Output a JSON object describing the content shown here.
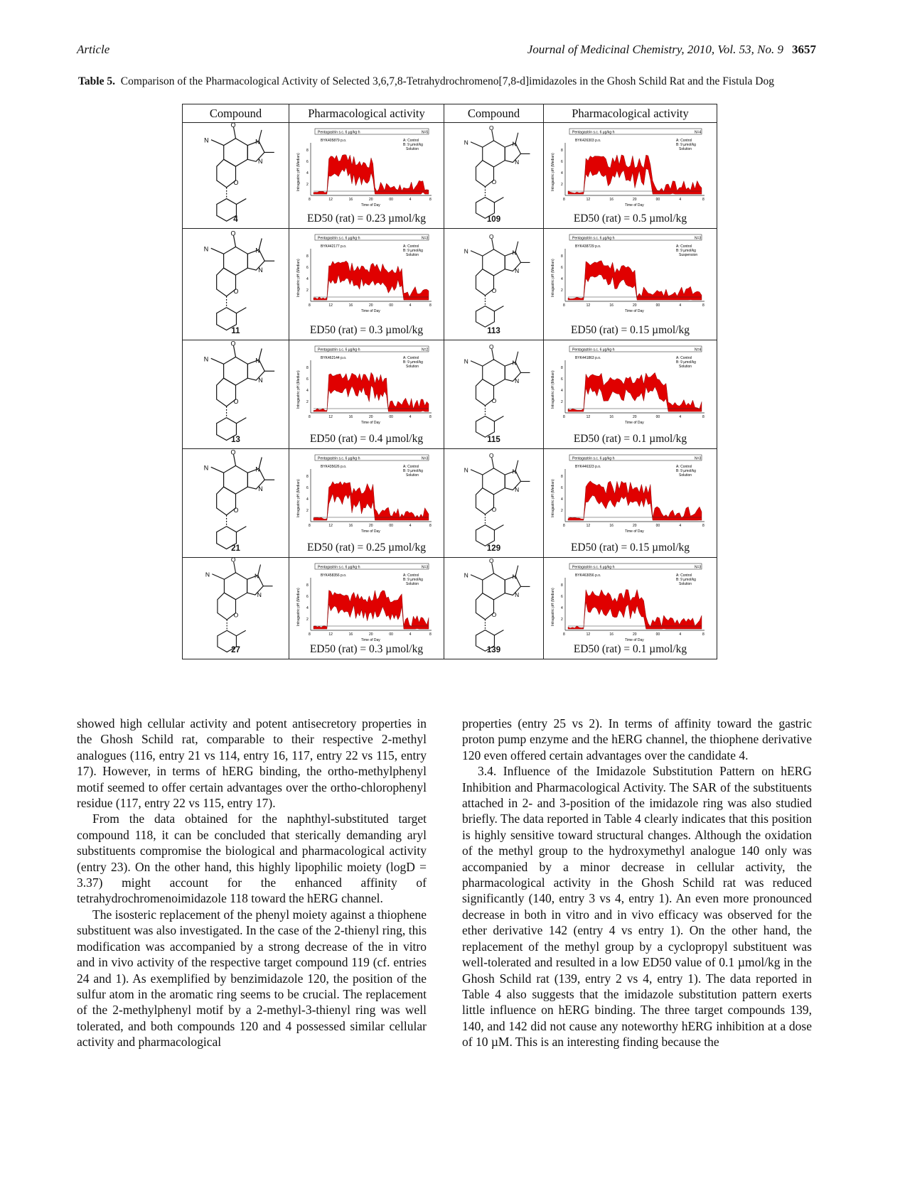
{
  "header": {
    "left": "Article",
    "right": "Journal of Medicinal Chemistry, 2010, Vol. 53, No. 9",
    "page": "3657"
  },
  "caption": {
    "label": "Table 5.",
    "text": "Comparison of the Pharmacological Activity of Selected 3,6,7,8-Tetrahydrochromeno[7,8-d]imidazoles in the Ghosh Schild Rat and the Fistula Dog"
  },
  "table": {
    "headers": [
      "Compound",
      "Pharmacological activity",
      "Compound",
      "Pharmacological activity"
    ],
    "rows": [
      [
        {
          "id": "4",
          "byk": "BYK405879 p.o.",
          "n": "N=5",
          "cond": "B: 9 µmol/kg",
          "form": "Solution",
          "ed50": "ED50 (rat) = 0.23 µmol/kg"
        },
        {
          "id": "109",
          "byk": "BYK426303 p.o.",
          "n": "N=4",
          "cond": "B: 9 µmol/kg",
          "form": "Solution",
          "ed50": "ED50 (rat) = 0.5 µmol/kg"
        }
      ],
      [
        {
          "id": "11",
          "byk": "BYK442177 p.o.",
          "n": "N=3",
          "cond": "B: 9 µmol/kg",
          "form": "Solution",
          "ed50": "ED50 (rat) = 0.3 µmol/kg"
        },
        {
          "id": "113",
          "byk": "BYK438729 p.o.",
          "n": "N=3",
          "cond": "B: 9 µmol/kg",
          "form": "Suspension",
          "ed50": "ED50 (rat) = 0.15 µmol/kg"
        }
      ],
      [
        {
          "id": "13",
          "byk": "BYK462144 p.o.",
          "n": "N=2",
          "cond": "B: 9 µmol/kg",
          "form": "Solution",
          "ed50": "ED50 (rat) = 0.4 µmol/kg"
        },
        {
          "id": "115",
          "byk": "BYK441863 p.o.",
          "n": "N=4",
          "cond": "B: 9 µmol/kg",
          "form": "Solution",
          "ed50": "ED50 (rat) = 0.1 µmol/kg"
        }
      ],
      [
        {
          "id": "21",
          "byk": "BYK435626 p.o.",
          "n": "N=3",
          "cond": "B: 9 µmol/kg",
          "form": "Solution",
          "ed50": "ED50 (rat) = 0.25 µmol/kg"
        },
        {
          "id": "129",
          "byk": "BYK446323 p.o.",
          "n": "N=3",
          "cond": "B: 9 µmol/kg",
          "form": "Solution",
          "ed50": "ED50 (rat) = 0.15 µmol/kg"
        }
      ],
      [
        {
          "id": "27",
          "byk": "BYK458356 p.o.",
          "n": "N=3",
          "cond": "B: 9 µmol/kg",
          "form": "Solution",
          "ed50": "ED50 (rat) = 0.3 µmol/kg"
        },
        {
          "id": "139",
          "byk": "BYK463056 p.o.",
          "n": "N=3",
          "cond": "B: 9 µmol/kg",
          "form": "Solution",
          "ed50": "ED50 (rat) = 0.1 µmol/kg"
        }
      ]
    ],
    "plot_common": {
      "top_label": "Pentagastrin s.c. 6 µg/kg·h",
      "ctrl": "A: Control",
      "ylabel": "Intragastric pH (Median)",
      "xlabel": "Time of Day",
      "xticks": [
        "8",
        "12",
        "16",
        "20",
        "00",
        "4",
        "8"
      ],
      "yticks": [
        "2",
        "4",
        "6",
        "8"
      ]
    }
  },
  "left_col": [
    "showed high cellular activity and potent antisecretory properties in the Ghosh Schild rat, comparable to their respective 2-methyl analogues (116, entry 21 vs 114, entry 16, 117, entry 22 vs 115, entry 17). However, in terms of hERG binding, the ortho-methylphenyl motif seemed to offer certain advantages over the ortho-chlorophenyl residue (117, entry 22 vs 115, entry 17).",
    "From the data obtained for the naphthyl-substituted target compound 118, it can be concluded that sterically demanding aryl substituents compromise the biological and pharmacological activity (entry 23). On the other hand, this highly lipophilic moiety (logD = 3.37) might account for the enhanced affinity of tetrahydrochromenoimidazole 118 toward the hERG channel.",
    "The isosteric replacement of the phenyl moiety against a thiophene substituent was also investigated. In the case of the 2-thienyl ring, this modification was accompanied by a strong decrease of the in vitro and in vivo activity of the respective target compound 119 (cf. entries 24 and 1). As exemplified by benzimidazole 120, the position of the sulfur atom in the aromatic ring seems to be crucial. The replacement of the 2-methylphenyl motif by a 2-methyl-3-thienyl ring was well tolerated, and both compounds 120 and 4 possessed similar cellular activity and pharmacological"
  ],
  "right_col": [
    "properties (entry 25 vs 2). In terms of affinity toward the gastric proton pump enzyme and the hERG channel, the thiophene derivative 120 even offered certain advantages over the candidate 4.",
    "3.4. Influence of the Imidazole Substitution Pattern on hERG Inhibition and Pharmacological Activity. The SAR of the substituents attached in 2- and 3-position of the imidazole ring was also studied briefly. The data reported in Table 4 clearly indicates that this position is highly sensitive toward structural changes. Although the oxidation of the methyl group to the hydroxymethyl analogue 140 only was accompanied by a minor decrease in cellular activity, the pharmacological activity in the Ghosh Schild rat was reduced significantly (140, entry 3 vs 4, entry 1). An even more pronounced decrease in both in vitro and in vivo efficacy was observed for the ether derivative 142 (entry 4 vs entry 1). On the other hand, the replacement of the methyl group by a cyclopropyl substituent was well-tolerated and resulted in a low ED50 value of 0.1 µmol/kg in the Ghosh Schild rat (139, entry 2 vs 4, entry 1). The data reported in Table 4 also suggests that the imidazole substitution pattern exerts little influence on hERG binding. The three target compounds 139, 140, and 142 did not cause any noteworthy hERG inhibition at a dose of 10 µM. This is an interesting finding because the"
  ]
}
